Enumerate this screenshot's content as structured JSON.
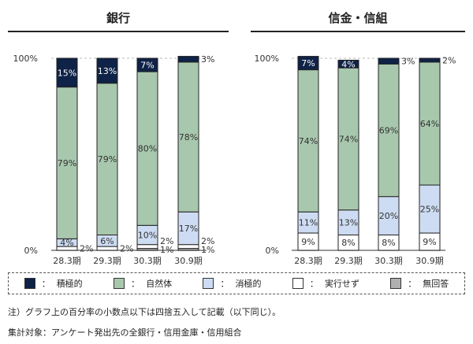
{
  "legend": [
    {
      "label": "積極的",
      "color": "#0f2247"
    },
    {
      "label": "自然体",
      "color": "#a8c8ae"
    },
    {
      "label": "消極的",
      "color": "#cddcf2"
    },
    {
      "label": "実行せず",
      "color": "#ffffff"
    },
    {
      "label": "無回答",
      "color": "#b0b0b0"
    }
  ],
  "notes": {
    "note1": "注）グラフ上の百分率の小数点以下は四捨五入して記載（以下同じ）。",
    "note2": "集計対象：アンケート発出先の全銀行・信用金庫・信用組合"
  },
  "chart_data": [
    {
      "type": "bar",
      "stacked": true,
      "title": "銀行",
      "categories": [
        "28.3期",
        "29.3期",
        "30.3期",
        "30.9期"
      ],
      "ytick_labels": [
        "0%",
        "100%"
      ],
      "ylim": [
        0,
        100
      ],
      "series": [
        {
          "name": "積極的",
          "values": [
            15,
            13,
            7,
            3
          ]
        },
        {
          "name": "自然体",
          "values": [
            79,
            79,
            80,
            78
          ]
        },
        {
          "name": "消極的",
          "values": [
            4,
            6,
            10,
            17
          ]
        },
        {
          "name": "実行せず",
          "values": [
            2,
            2,
            2,
            2
          ]
        },
        {
          "name": "無回答",
          "values": [
            0,
            0,
            1,
            1
          ]
        }
      ]
    },
    {
      "type": "bar",
      "stacked": true,
      "title": "信金・信組",
      "categories": [
        "28.3期",
        "29.3期",
        "30.3期",
        "30.9期"
      ],
      "ytick_labels": [
        "0%",
        "100%"
      ],
      "ylim": [
        0,
        100
      ],
      "series": [
        {
          "name": "積極的",
          "values": [
            7,
            4,
            3,
            2
          ]
        },
        {
          "name": "自然体",
          "values": [
            74,
            74,
            69,
            64
          ]
        },
        {
          "name": "消極的",
          "values": [
            11,
            13,
            20,
            25
          ]
        },
        {
          "name": "実行せず",
          "values": [
            9,
            8,
            8,
            9
          ]
        },
        {
          "name": "無回答",
          "values": [
            0,
            0,
            0,
            0
          ]
        }
      ]
    }
  ]
}
